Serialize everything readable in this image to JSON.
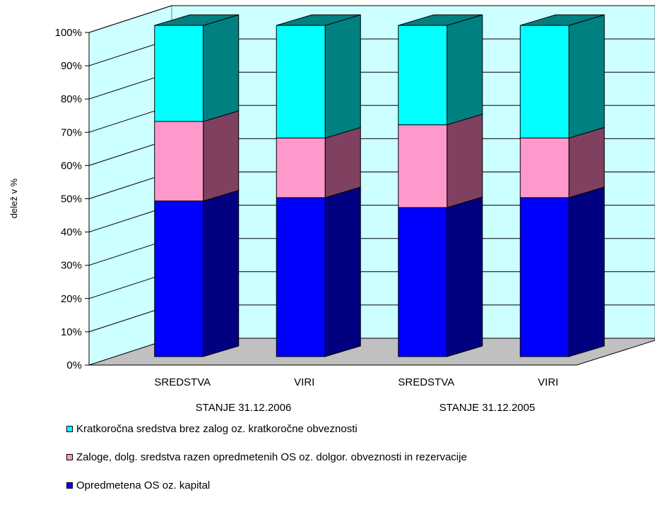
{
  "chart_data": {
    "type": "bar",
    "stacked": true,
    "percent_stacked": true,
    "three_d": true,
    "ylabel": "delež v %",
    "xlabel": "",
    "ylim": [
      0,
      100
    ],
    "yticks": [
      "0%",
      "10%",
      "20%",
      "30%",
      "40%",
      "50%",
      "60%",
      "70%",
      "80%",
      "90%",
      "100%"
    ],
    "categories": [
      "SREDSTVA",
      "VIRI",
      "SREDSTVA",
      "VIRI"
    ],
    "groups": [
      {
        "label": "STANJE 31.12.2006",
        "span": [
          0,
          1
        ]
      },
      {
        "label": "STANJE 31.12.2005",
        "span": [
          2,
          3
        ]
      }
    ],
    "series": [
      {
        "name": "Opredmetena OS oz. kapital",
        "color": "#0000FF",
        "side_color": "#000080",
        "values": [
          47,
          48,
          45,
          48
        ]
      },
      {
        "name": "Zaloge, dolg. sredstva razen opredmetenih OS oz. dolgor. obveznosti in rezervacije",
        "color": "#FF99CC",
        "side_color": "#804060",
        "values": [
          24,
          18,
          25,
          18
        ]
      },
      {
        "name": "Kratkoročna sredstva brez zalog oz. kratkoročne obveznosti",
        "color": "#00FFFF",
        "side_color": "#008080",
        "values": [
          29,
          34,
          30,
          34
        ]
      }
    ],
    "legend_order": [
      2,
      1,
      0
    ],
    "legend_position": "bottom",
    "grid": true,
    "wall_color": "#CCFFFF",
    "floor_color": "#C0C0C0"
  }
}
